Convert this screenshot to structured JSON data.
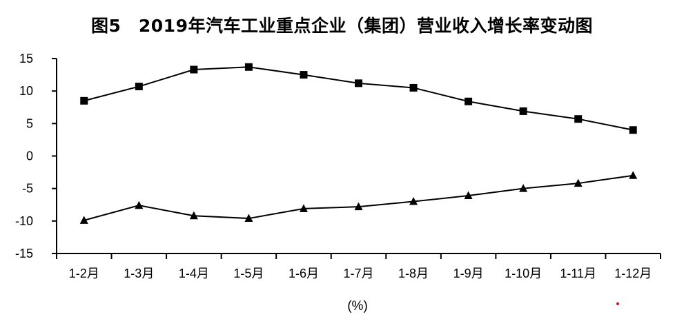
{
  "chart_data": {
    "type": "line",
    "title": "图5　2019年汽车工业重点企业（集团）营业收入增长率变动图",
    "xlabel": "(%)",
    "ylabel": "",
    "categories": [
      "1-2月",
      "1-3月",
      "1-4月",
      "1-5月",
      "1-6月",
      "1-7月",
      "1-8月",
      "1-9月",
      "1-10月",
      "1-11月",
      "1-12月"
    ],
    "ylim": [
      -15,
      15
    ],
    "yticks": [
      15,
      10,
      5,
      0,
      -5,
      -10,
      -15
    ],
    "grid": false,
    "legend": "none",
    "series": [
      {
        "marker": "square",
        "color": "#000000",
        "values": [
          8.5,
          10.7,
          13.3,
          13.7,
          12.5,
          11.2,
          10.5,
          8.4,
          6.9,
          5.7,
          4.0
        ]
      },
      {
        "marker": "triangle",
        "color": "#000000",
        "values": [
          -9.9,
          -7.6,
          -9.2,
          -9.6,
          -8.1,
          -7.8,
          -7.0,
          -6.1,
          -5.0,
          -4.2,
          -3.0
        ]
      }
    ]
  }
}
